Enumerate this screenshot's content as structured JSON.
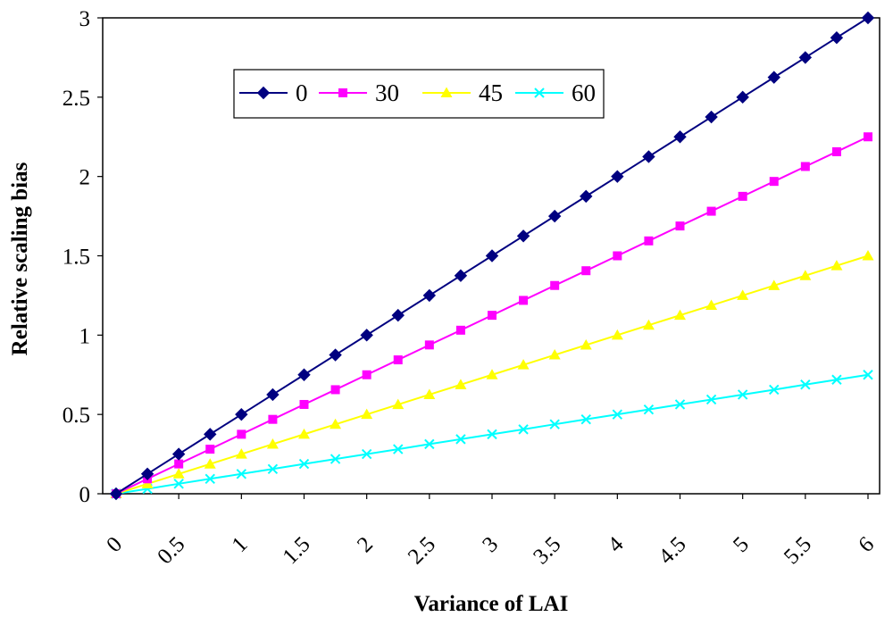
{
  "chart_data": {
    "type": "line",
    "title": "",
    "xlabel": "Variance of LAI",
    "ylabel": "Relative scaling bias",
    "x": [
      0,
      0.25,
      0.5,
      0.75,
      1,
      1.25,
      1.5,
      1.75,
      2,
      2.25,
      2.5,
      2.75,
      3,
      3.25,
      3.5,
      3.75,
      4,
      4.25,
      4.5,
      4.75,
      5,
      5.25,
      5.5,
      5.75,
      6
    ],
    "xlim": [
      0,
      6
    ],
    "ylim": [
      0,
      3
    ],
    "x_tick_labels": [
      "0",
      "0.5",
      "1",
      "1.5",
      "2",
      "2.5",
      "3",
      "3.5",
      "4",
      "4.5",
      "5",
      "5.5",
      "6"
    ],
    "y_tick_labels": [
      "0",
      "0.5",
      "1",
      "1.5",
      "2",
      "2.5",
      "3"
    ],
    "grid": false,
    "legend_position": "top-left, inside plot",
    "series": [
      {
        "name": "0",
        "color": "#000080",
        "marker": "diamond",
        "values": [
          0,
          0.125,
          0.25,
          0.375,
          0.5,
          0.625,
          0.75,
          0.875,
          1.0,
          1.125,
          1.25,
          1.375,
          1.5,
          1.625,
          1.75,
          1.875,
          2.0,
          2.125,
          2.25,
          2.375,
          2.5,
          2.625,
          2.75,
          2.875,
          3.0
        ]
      },
      {
        "name": "30",
        "color": "#FF00FF",
        "marker": "square",
        "values": [
          0,
          0.094,
          0.188,
          0.281,
          0.375,
          0.469,
          0.563,
          0.656,
          0.75,
          0.844,
          0.938,
          1.031,
          1.125,
          1.219,
          1.313,
          1.406,
          1.5,
          1.594,
          1.688,
          1.781,
          1.875,
          1.969,
          2.063,
          2.156,
          2.25
        ]
      },
      {
        "name": "45",
        "color": "#FFFF00",
        "marker": "triangle",
        "values": [
          0,
          0.0625,
          0.125,
          0.1875,
          0.25,
          0.3125,
          0.375,
          0.4375,
          0.5,
          0.5625,
          0.625,
          0.6875,
          0.75,
          0.8125,
          0.875,
          0.9375,
          1.0,
          1.0625,
          1.125,
          1.1875,
          1.25,
          1.3125,
          1.375,
          1.4375,
          1.5
        ]
      },
      {
        "name": "60",
        "color": "#00FFFF",
        "marker": "x",
        "values": [
          0,
          0.031,
          0.063,
          0.094,
          0.125,
          0.156,
          0.188,
          0.219,
          0.25,
          0.281,
          0.313,
          0.344,
          0.375,
          0.406,
          0.438,
          0.469,
          0.5,
          0.531,
          0.563,
          0.594,
          0.625,
          0.656,
          0.688,
          0.719,
          0.75
        ]
      }
    ]
  }
}
